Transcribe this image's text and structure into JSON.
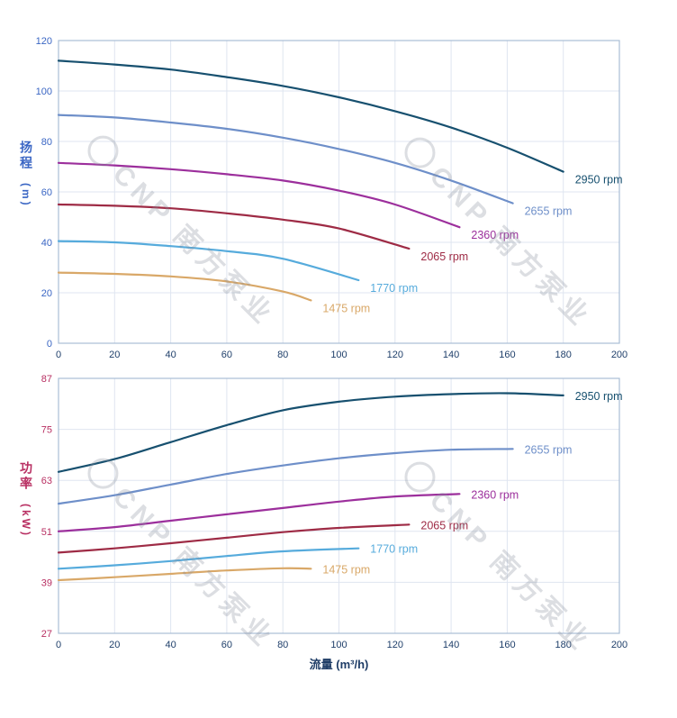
{
  "xlabel": "流量 (m³/h)",
  "watermark": {
    "text": "CNP 南方泵业"
  },
  "colors": {
    "xaxis_text": "#1e3c66",
    "grid": "#dfe5f0",
    "border": "#a9bdd6",
    "watermark": "rgba(138,146,160,0.30)"
  },
  "chart_data": [
    {
      "type": "line",
      "title": "",
      "ylabel": "扬程",
      "ylabel_unit": "(m)",
      "xlabel": "流量 (m³/h)",
      "axis_color": "#3a66c4",
      "xtick_color": "#20406b",
      "xlim": [
        0,
        200
      ],
      "ylim": [
        0,
        120
      ],
      "xticks": [
        0,
        20,
        40,
        60,
        80,
        100,
        120,
        140,
        160,
        180,
        200
      ],
      "yticks": [
        0,
        20,
        40,
        60,
        80,
        100,
        120
      ],
      "grid": true,
      "legend_position": "curve-end-labels",
      "label_offset": [
        13,
        13
      ],
      "series": [
        {
          "name": "2950 rpm",
          "color": "#17506f",
          "x": [
            0,
            20,
            40,
            60,
            80,
            100,
            120,
            140,
            160,
            180
          ],
          "y": [
            112,
            110.5,
            108.5,
            105.5,
            102,
            97.5,
            92,
            85.5,
            77.5,
            68
          ]
        },
        {
          "name": "2655 rpm",
          "color": "#6e8fc9",
          "x": [
            0,
            20,
            40,
            60,
            80,
            100,
            120,
            140,
            162
          ],
          "y": [
            90.5,
            89.5,
            87.5,
            85,
            81.5,
            77,
            71.5,
            64.5,
            55.5
          ]
        },
        {
          "name": "2360 rpm",
          "color": "#9c2f9c",
          "x": [
            0,
            20,
            40,
            60,
            80,
            100,
            120,
            143
          ],
          "y": [
            71.5,
            70.5,
            69,
            67,
            64.5,
            60.5,
            55,
            46
          ]
        },
        {
          "name": "2065 rpm",
          "color": "#9e2b45",
          "x": [
            0,
            20,
            40,
            60,
            80,
            100,
            125
          ],
          "y": [
            55,
            54.5,
            53.5,
            51.5,
            49,
            45.5,
            37.5
          ]
        },
        {
          "name": "1770 rpm",
          "color": "#56abdc",
          "x": [
            0,
            20,
            40,
            60,
            80,
            107
          ],
          "y": [
            40.5,
            40,
            38.5,
            36.5,
            33.5,
            25
          ]
        },
        {
          "name": "1475 rpm",
          "color": "#d9a868",
          "x": [
            0,
            20,
            40,
            60,
            80,
            90
          ],
          "y": [
            28,
            27.5,
            26.5,
            24.5,
            20.5,
            17
          ]
        }
      ]
    },
    {
      "type": "line",
      "title": "",
      "ylabel": "功率",
      "ylabel_unit": "(kW)",
      "xlabel": "流量 (m³/h)",
      "axis_color": "#b82f62",
      "xtick_color": "#20406b",
      "xlim": [
        0,
        200
      ],
      "ylim": [
        27,
        87
      ],
      "xticks": [
        0,
        20,
        40,
        60,
        80,
        100,
        120,
        140,
        160,
        180,
        200
      ],
      "yticks": [
        27,
        39,
        51,
        63,
        75,
        87
      ],
      "grid": true,
      "legend_position": "curve-end-labels",
      "label_offset": [
        13,
        5
      ],
      "series": [
        {
          "name": "2950 rpm",
          "color": "#17506f",
          "x": [
            0,
            20,
            40,
            60,
            80,
            100,
            120,
            140,
            160,
            180
          ],
          "y": [
            65,
            68,
            72,
            76,
            79.5,
            81.5,
            82.7,
            83.3,
            83.5,
            83
          ]
        },
        {
          "name": "2655 rpm",
          "color": "#6e8fc9",
          "x": [
            0,
            20,
            40,
            60,
            80,
            100,
            120,
            140,
            162
          ],
          "y": [
            57.5,
            59.5,
            62,
            64.5,
            66.5,
            68.2,
            69.4,
            70.2,
            70.4
          ]
        },
        {
          "name": "2360 rpm",
          "color": "#9c2f9c",
          "x": [
            0,
            20,
            40,
            60,
            80,
            100,
            120,
            143
          ],
          "y": [
            51,
            52,
            53.5,
            55,
            56.5,
            58,
            59.2,
            59.8
          ]
        },
        {
          "name": "2065 rpm",
          "color": "#9e2b45",
          "x": [
            0,
            20,
            40,
            60,
            80,
            100,
            125
          ],
          "y": [
            46,
            47,
            48.2,
            49.5,
            50.8,
            51.8,
            52.6
          ]
        },
        {
          "name": "1770 rpm",
          "color": "#56abdc",
          "x": [
            0,
            20,
            40,
            60,
            80,
            107
          ],
          "y": [
            42.2,
            43,
            44,
            45.2,
            46.3,
            47
          ]
        },
        {
          "name": "1475 rpm",
          "color": "#d9a868",
          "x": [
            0,
            20,
            40,
            60,
            80,
            90
          ],
          "y": [
            39.5,
            40.2,
            41,
            41.8,
            42.3,
            42.2
          ]
        }
      ]
    }
  ]
}
